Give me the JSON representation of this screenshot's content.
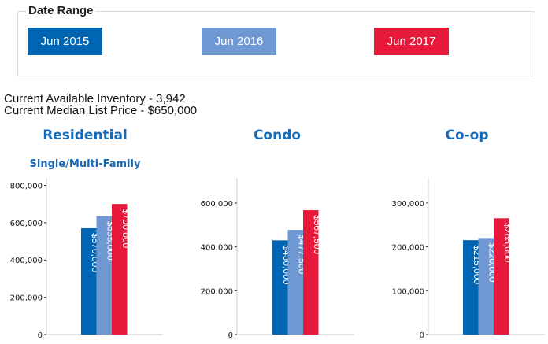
{
  "date_range": {
    "legend": "Date Range",
    "buttons": [
      {
        "label": "Jun 2015",
        "color": "#0066b3"
      },
      {
        "label": "Jun 2016",
        "color": "#7099d4"
      },
      {
        "label": "Jun 2017",
        "color": "#e8193a"
      }
    ]
  },
  "info": {
    "inventory": "Current Available Inventory - 3,942",
    "median_price": "Current Median List Price - $650,000"
  },
  "chart_data": [
    {
      "type": "bar",
      "title": "Residential",
      "subtitle": "Single/Multi-Family",
      "categories": [
        "Jun 2015",
        "Jun 2016",
        "Jun 2017"
      ],
      "values": [
        570000,
        635000,
        700000
      ],
      "labels": [
        "$570,000",
        "$635,000",
        "$700,000"
      ],
      "ylim": [
        0,
        840000
      ],
      "ticks": [
        0,
        200000,
        400000,
        600000,
        800000
      ],
      "tick_labels": [
        "0",
        "200,000",
        "400,000",
        "600,000",
        "800,000"
      ],
      "grid": false
    },
    {
      "type": "bar",
      "title": "Condo",
      "categories": [
        "Jun 2015",
        "Jun 2016",
        "Jun 2017"
      ],
      "values": [
        430000,
        477500,
        567500
      ],
      "labels": [
        "$430,000",
        "$477,500",
        "$567,500"
      ],
      "ylim": [
        0,
        715000
      ],
      "ticks": [
        0,
        200000,
        400000,
        600000
      ],
      "tick_labels": [
        "0",
        "200,000",
        "400,000",
        "600,000"
      ],
      "grid": false
    },
    {
      "type": "bar",
      "title": "Co-op",
      "categories": [
        "Jun 2015",
        "Jun 2016",
        "Jun 2017"
      ],
      "values": [
        215000,
        220000,
        265000
      ],
      "labels": [
        "$215,000",
        "$220,000",
        "$265,000"
      ],
      "ylim": [
        0,
        357000
      ],
      "ticks": [
        0,
        100000,
        200000,
        300000
      ],
      "tick_labels": [
        "0",
        "100,000",
        "200,000",
        "300,000"
      ],
      "grid": false
    }
  ]
}
